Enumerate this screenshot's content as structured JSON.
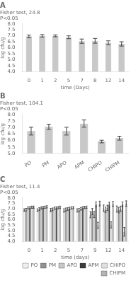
{
  "chart_data": [
    {
      "type": "bar",
      "title": "A",
      "annotation": "Fisher test, 24.8\nP<0.05",
      "xlabel": "time (Days)",
      "ylabel": "log cfu/g",
      "categories": [
        "0",
        "1",
        "2",
        "5",
        "7",
        "8",
        "12",
        "14"
      ],
      "values": [
        6.95,
        7.0,
        7.0,
        6.88,
        6.55,
        6.58,
        6.42,
        6.32
      ],
      "errors": [
        0.12,
        0.1,
        0.08,
        0.12,
        0.18,
        0.2,
        0.16,
        0.18
      ],
      "color": "#c8c8c8",
      "ylim": [
        4.0,
        8.0
      ],
      "yticks": [
        {
          "value": 4.0,
          "label": "4.0"
        },
        4.5,
        {
          "value": 5.0,
          "label": "5.0"
        },
        5.5,
        {
          "value": 6.0,
          "label": "6.0"
        },
        6.5,
        {
          "value": 7.0,
          "label": "7.0"
        },
        7.5,
        {
          "value": 8.0,
          "label": "8.0"
        }
      ],
      "grid": false
    },
    {
      "type": "bar",
      "title": "B",
      "annotation": "Fisher test, 104.1\nP<0.05",
      "ylabel": "log cfu/g",
      "categories": [
        "PO",
        "PM",
        "APO",
        "APM",
        "CHIPO",
        "CHIPM"
      ],
      "values": [
        6.72,
        7.05,
        6.72,
        7.3,
        5.92,
        6.18
      ],
      "errors": [
        0.3,
        0.2,
        0.3,
        0.28,
        0.1,
        0.15
      ],
      "color": "#c8c8c8",
      "ylim": [
        5.0,
        8.0
      ],
      "yticks": [
        {
          "value": 5.0,
          "label": "5.0"
        },
        5.5,
        {
          "value": 6.0,
          "label": "6.0"
        },
        6.5,
        {
          "value": 7.0,
          "label": "7.0"
        },
        7.5,
        {
          "value": 8.0,
          "label": "8.0"
        }
      ],
      "grid": false
    },
    {
      "type": "bar",
      "title": "C",
      "annotation": "Fisher test, 11.4\nP<0.05",
      "xlabel": "time (days)",
      "ylabel": "log cfu/g",
      "categories": [
        "0",
        "1",
        "2",
        "5",
        "7",
        "9",
        "12",
        "14"
      ],
      "series": [
        {
          "name": "PO",
          "color": "#f0f0f0",
          "values": [
            6.88,
            6.88,
            6.88,
            6.85,
            6.85,
            6.45,
            7.05,
            6.98
          ],
          "errors": [
            0.12,
            0.12,
            0.15,
            0.15,
            0.15,
            0.28,
            0.3,
            0.28
          ]
        },
        {
          "name": "PM",
          "color": "#909090",
          "values": [
            6.92,
            6.98,
            6.95,
            6.92,
            6.88,
            6.75,
            6.92,
            6.88
          ],
          "errors": [
            0.12,
            0.12,
            0.12,
            0.15,
            0.15,
            0.28,
            0.25,
            0.25
          ]
        },
        {
          "name": "APO",
          "color": "#c8c8c8",
          "values": [
            7.08,
            7.08,
            7.05,
            6.98,
            7.0,
            6.48,
            7.08,
            7.0
          ],
          "errors": [
            0.1,
            0.1,
            0.1,
            0.12,
            0.12,
            0.28,
            0.25,
            0.25
          ]
        },
        {
          "name": "APM",
          "color": "#3c3c3c",
          "values": [
            7.1,
            7.12,
            7.08,
            7.05,
            7.08,
            7.42,
            7.38,
            7.42
          ],
          "errors": [
            0.1,
            0.1,
            0.1,
            0.1,
            0.12,
            0.22,
            0.22,
            0.22
          ]
        },
        {
          "name": "CHIPO",
          "color": "#e0e0e0",
          "values": [
            7.15,
            7.15,
            7.1,
            7.08,
            7.12,
            5.48,
            5.52,
            4.88
          ],
          "errors": [
            0.1,
            0.1,
            0.1,
            0.1,
            0.1,
            0.28,
            0.28,
            0.4
          ]
        },
        {
          "name": "CHIPM",
          "color": "#b4b4b4",
          "values": [
            7.15,
            7.18,
            7.15,
            7.1,
            7.15,
            7.48,
            7.45,
            7.48
          ],
          "errors": [
            0.1,
            0.1,
            0.1,
            0.1,
            0.1,
            0.22,
            0.22,
            0.25
          ]
        }
      ],
      "ylim": [
        4.0,
        8.0
      ],
      "yticks": [
        {
          "value": 4.0,
          "label": "4.0"
        },
        4.5,
        {
          "value": 5.0,
          "label": "5.0"
        },
        5.5,
        {
          "value": 6.0,
          "label": "6.0"
        },
        6.5,
        {
          "value": 7.0,
          "label": "7.0"
        },
        7.5,
        {
          "value": 8.0,
          "label": "8.0"
        }
      ],
      "legend": "lower right",
      "grid": false
    }
  ]
}
